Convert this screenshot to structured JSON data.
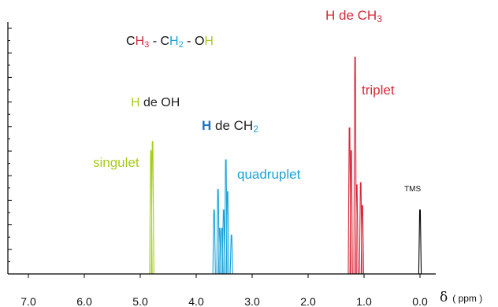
{
  "colors": {
    "axis": "#000000",
    "ch3": "#d8283a",
    "ch2": "#1aa2d8",
    "oh": "#a8cc1e",
    "tms": "#000000",
    "hydrogen_blue": "#1f73c4"
  },
  "formula": {
    "c1": "C",
    "h3": "H",
    "sub3": "3",
    "sep1": " - ",
    "c2": "C",
    "h2": "H",
    "sub2": "2",
    "sep2": " - ",
    "o": "O",
    "h": "H"
  },
  "labels": {
    "ch3_prefix": "H de CH",
    "ch3_sub": "3",
    "ch3_mult": "triplet",
    "oh_h": "H",
    "oh_rest": " de OH",
    "oh_mult": "singulet",
    "ch2_h": "H",
    "ch2_rest": " de CH",
    "ch2_sub": "2",
    "ch2_mult": "quadruplet",
    "tms": "TMS"
  },
  "x_axis": {
    "symbol": "δ",
    "unit": "( ppm )"
  },
  "chart_data": {
    "type": "line",
    "x_unit": "ppm",
    "xlim": [
      7.0,
      0.0
    ],
    "reversed_x": true,
    "x_ticks": [
      "7.0",
      "6.0",
      "5.0",
      "4.0",
      "3.0",
      "2.0",
      "1.0",
      "0.0"
    ],
    "x_tick_values": [
      7.0,
      6.0,
      5.0,
      4.0,
      3.0,
      2.0,
      1.0,
      0.0
    ],
    "y_axis_ticks": false,
    "grid": false,
    "signals": [
      {
        "name": "singulet",
        "assignment": "H de OH",
        "color": "#a8cc1e",
        "peaks": [
          [
            4.81,
            0.54
          ],
          [
            4.78,
            0.58
          ]
        ]
      },
      {
        "name": "quadruplet",
        "assignment": "H de CH2",
        "color": "#1aa2d8",
        "peaks": [
          [
            3.68,
            0.28
          ],
          [
            3.61,
            0.37
          ],
          [
            3.58,
            0.2
          ],
          [
            3.54,
            0.2
          ],
          [
            3.51,
            0.28
          ],
          [
            3.47,
            0.5
          ],
          [
            3.44,
            0.36
          ],
          [
            3.37,
            0.17
          ]
        ]
      },
      {
        "name": "triplet",
        "assignment": "H de CH3",
        "color": "#d8283a",
        "peaks": [
          [
            1.26,
            0.64
          ],
          [
            1.23,
            0.54
          ],
          [
            1.16,
            0.95
          ],
          [
            1.13,
            0.39
          ],
          [
            1.06,
            0.4
          ],
          [
            1.03,
            0.3
          ]
        ]
      },
      {
        "name": "TMS",
        "assignment": "TMS",
        "color": "#000000",
        "peaks": [
          [
            0.0,
            0.28
          ]
        ]
      }
    ]
  }
}
